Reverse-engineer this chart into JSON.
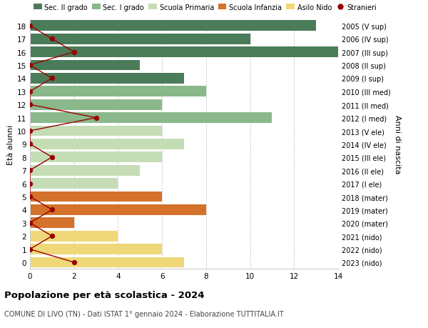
{
  "ages": [
    18,
    17,
    16,
    15,
    14,
    13,
    12,
    11,
    10,
    9,
    8,
    7,
    6,
    5,
    4,
    3,
    2,
    1,
    0
  ],
  "years": [
    "2005 (V sup)",
    "2006 (IV sup)",
    "2007 (III sup)",
    "2008 (II sup)",
    "2009 (I sup)",
    "2010 (III med)",
    "2011 (II med)",
    "2012 (I med)",
    "2013 (V ele)",
    "2014 (IV ele)",
    "2015 (III ele)",
    "2016 (II ele)",
    "2017 (I ele)",
    "2018 (mater)",
    "2019 (mater)",
    "2020 (mater)",
    "2021 (nido)",
    "2022 (nido)",
    "2023 (nido)"
  ],
  "bar_values": [
    13,
    10,
    14,
    5,
    7,
    8,
    6,
    11,
    6,
    7,
    6,
    5,
    4,
    6,
    8,
    2,
    4,
    6,
    7
  ],
  "bar_colors": [
    "#4a7c59",
    "#4a7c59",
    "#4a7c59",
    "#4a7c59",
    "#4a7c59",
    "#8ab88a",
    "#8ab88a",
    "#8ab88a",
    "#c5ddb5",
    "#c5ddb5",
    "#c5ddb5",
    "#c5ddb5",
    "#c5ddb5",
    "#d4712a",
    "#d4712a",
    "#d4712a",
    "#f0d878",
    "#f0d878",
    "#f0d878"
  ],
  "stranieri_values": [
    0,
    1,
    2,
    0,
    1,
    0,
    0,
    3,
    0,
    0,
    1,
    0,
    0,
    0,
    1,
    0,
    1,
    0,
    2
  ],
  "legend_labels": [
    "Sec. II grado",
    "Sec. I grado",
    "Scuola Primaria",
    "Scuola Infanzia",
    "Asilo Nido",
    "Stranieri"
  ],
  "legend_colors": [
    "#4a7c59",
    "#8ab88a",
    "#c5ddb5",
    "#d4712a",
    "#f0d878",
    "#990000"
  ],
  "title": "Popolazione per età scolastica - 2024",
  "subtitle": "COMUNE DI LIVO (TN) - Dati ISTAT 1° gennaio 2024 - Elaborazione TUTTITALIA.IT",
  "ylabel_left": "Età alunni",
  "ylabel_right": "Anni di nascita",
  "xlim": [
    0,
    14
  ],
  "xticks": [
    0,
    2,
    4,
    6,
    8,
    10,
    12,
    14
  ],
  "background_color": "#ffffff",
  "grid_color": "#cccccc"
}
